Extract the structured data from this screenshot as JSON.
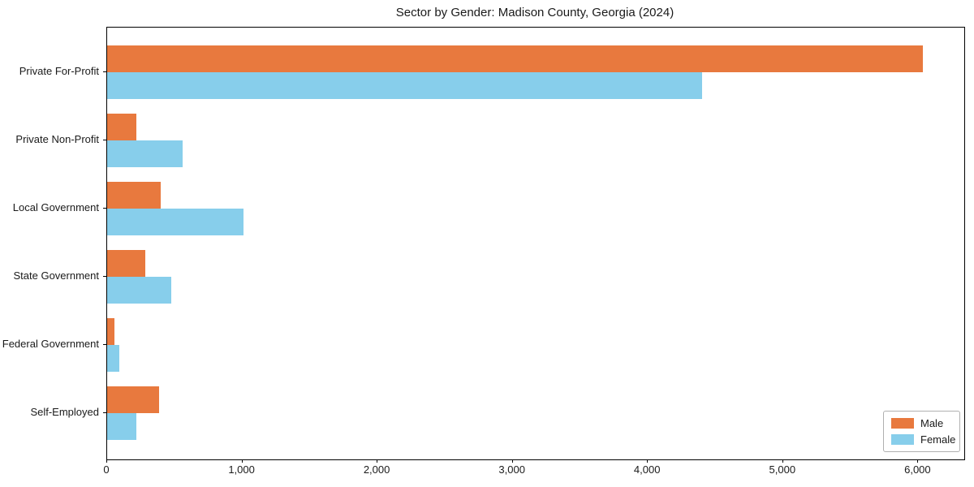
{
  "title": "Sector by Gender: Madison County, Georgia (2024)",
  "colors": {
    "male": "#e8793e",
    "female": "#87ceeb",
    "axis": "#000000",
    "background": "#ffffff",
    "legend_border": "#b0b0b0"
  },
  "chart_data": {
    "type": "bar",
    "orientation": "horizontal",
    "title": "Sector by Gender: Madison County, Georgia (2024)",
    "categories": [
      "Private For-Profit",
      "Private Non-Profit",
      "Local Government",
      "State Government",
      "Federal Government",
      "Self-Employed"
    ],
    "series": [
      {
        "name": "Male",
        "color": "#e8793e",
        "values": [
          6034,
          213,
          393,
          279,
          51,
          381
        ]
      },
      {
        "name": "Female",
        "color": "#87ceeb",
        "values": [
          4403,
          556,
          1006,
          477,
          91,
          217
        ]
      }
    ],
    "xlabel": "",
    "ylabel": "",
    "xlim": [
      0,
      6340
    ],
    "x_ticks": [
      0,
      1000,
      2000,
      3000,
      4000,
      5000,
      6000
    ],
    "x_tick_labels": [
      "0",
      "1,000",
      "2,000",
      "3,000",
      "4,000",
      "5,000",
      "6,000"
    ],
    "grid": false,
    "legend_position": "lower right"
  }
}
